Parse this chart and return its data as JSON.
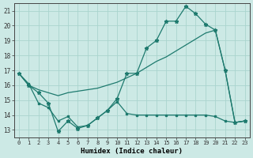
{
  "xlabel": "Humidex (Indice chaleur)",
  "background_color": "#cce9e5",
  "grid_color": "#aad4ce",
  "line_color": "#1e7a6e",
  "xlim": [
    -0.5,
    23.5
  ],
  "ylim": [
    12.5,
    21.5
  ],
  "yticks": [
    13,
    14,
    15,
    16,
    17,
    18,
    19,
    20,
    21
  ],
  "xticks": [
    0,
    1,
    2,
    3,
    4,
    5,
    6,
    7,
    8,
    9,
    10,
    11,
    12,
    13,
    14,
    15,
    16,
    17,
    18,
    19,
    20,
    21,
    22,
    23
  ],
  "line1_x": [
    0,
    1,
    2,
    3,
    4,
    5,
    6,
    7,
    8,
    9,
    10,
    11,
    12,
    13,
    14,
    15,
    16,
    17,
    18,
    19,
    20,
    21,
    22,
    23
  ],
  "line1_y": [
    16.8,
    16.0,
    15.5,
    14.8,
    12.9,
    13.6,
    13.1,
    13.3,
    13.8,
    14.3,
    15.1,
    16.8,
    16.8,
    18.5,
    19.0,
    20.3,
    20.3,
    21.3,
    20.8,
    20.1,
    19.7,
    17.0,
    13.5,
    13.6
  ],
  "line2_x": [
    0,
    1,
    2,
    3,
    4,
    5,
    6,
    7,
    8,
    9,
    10,
    11,
    12,
    13,
    14,
    15,
    16,
    17,
    18,
    19,
    20,
    21,
    22,
    23
  ],
  "line2_y": [
    16.8,
    16.0,
    15.7,
    15.5,
    15.3,
    15.5,
    15.6,
    15.7,
    15.8,
    16.0,
    16.2,
    16.5,
    16.8,
    17.2,
    17.6,
    17.9,
    18.3,
    18.7,
    19.1,
    19.5,
    19.7,
    17.0,
    13.5,
    13.6
  ],
  "line3_x": [
    0,
    1,
    2,
    3,
    4,
    5,
    6,
    7,
    8,
    9,
    10,
    11,
    12,
    13,
    14,
    15,
    16,
    17,
    18,
    19,
    20,
    21,
    22,
    23
  ],
  "line3_y": [
    16.8,
    16.1,
    14.8,
    14.5,
    13.6,
    13.9,
    13.2,
    13.3,
    13.8,
    14.3,
    14.9,
    14.1,
    14.0,
    14.0,
    14.0,
    14.0,
    14.0,
    14.0,
    14.0,
    14.0,
    13.9,
    13.6,
    13.5,
    13.6
  ]
}
